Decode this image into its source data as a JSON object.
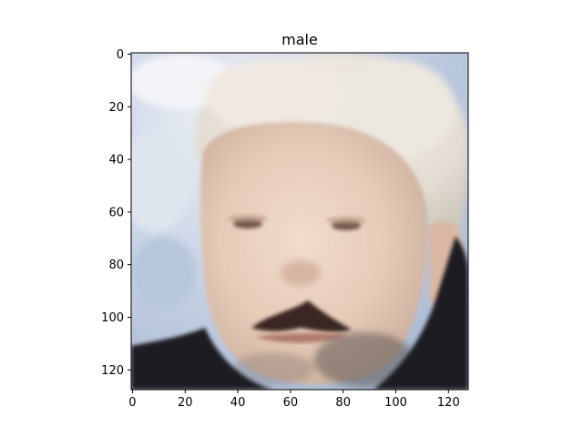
{
  "title": "male",
  "image": {
    "description_icon": "face-photo",
    "pixel_extent": [
      128,
      128
    ]
  },
  "axes": {
    "x_ticks": [
      0,
      20,
      40,
      60,
      80,
      100,
      120
    ],
    "y_ticks": [
      0,
      20,
      40,
      60,
      80,
      100,
      120
    ],
    "xlim": [
      -0.5,
      127.5
    ],
    "ylim": [
      127.5,
      -0.5
    ]
  },
  "colors": {
    "sky": "#c9d4e6",
    "hair": "#e8e4de",
    "skin": "#e6cbb8",
    "mustache": "#3b2622",
    "jacket": "#1c1a24"
  }
}
